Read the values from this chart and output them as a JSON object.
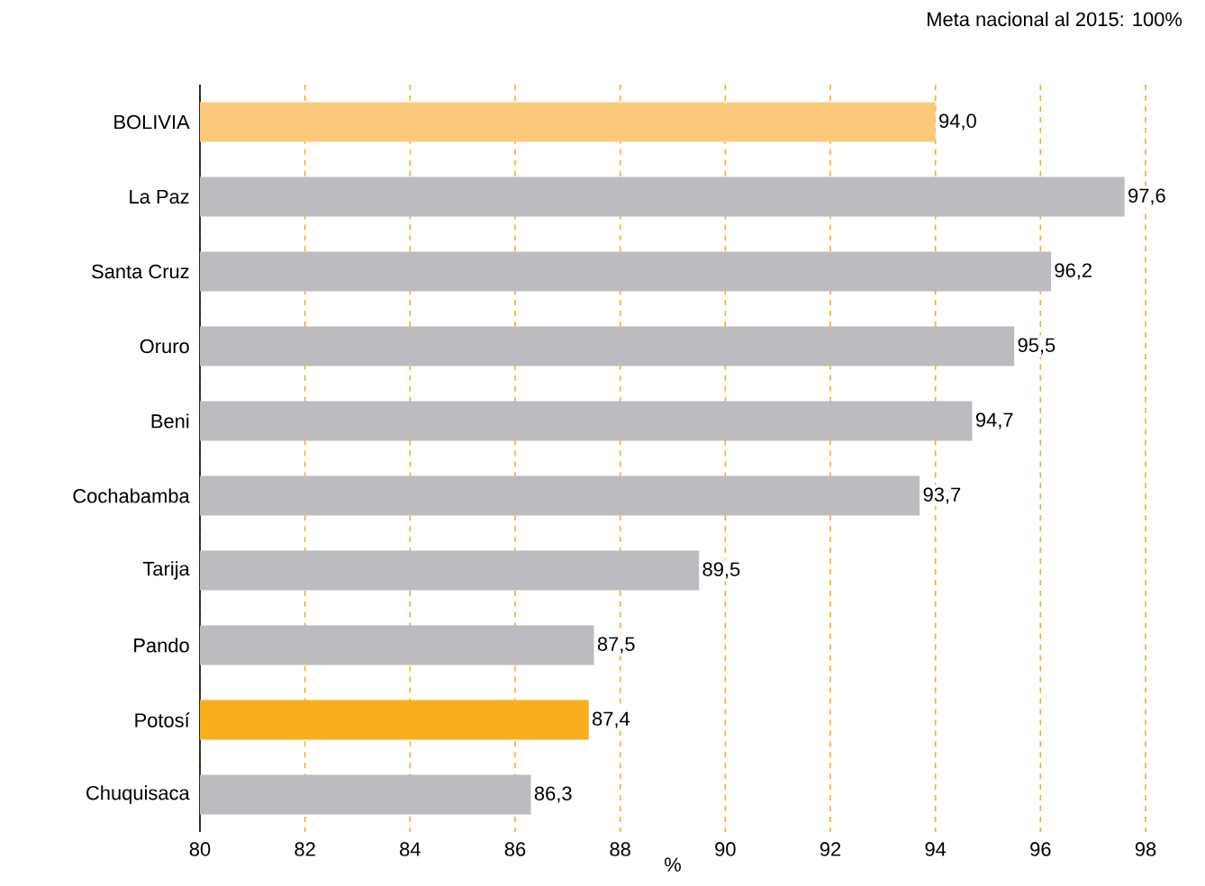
{
  "chart_data": {
    "type": "bar",
    "orientation": "horizontal",
    "xlabel": "%",
    "categories": [
      "BOLIVIA",
      "La Paz",
      "Santa Cruz",
      "Oruro",
      "Beni",
      "Cochabamba",
      "Tarija",
      "Pando",
      "Potosí",
      "Chuquisaca"
    ],
    "values": [
      94.0,
      97.6,
      96.2,
      95.5,
      94.7,
      93.7,
      89.5,
      87.5,
      87.4,
      86.3
    ],
    "value_labels": [
      "94,0",
      "97,6",
      "96,2",
      "95,5",
      "94,7",
      "93,7",
      "89,5",
      "87,5",
      "87,4",
      "86,3"
    ],
    "colors": [
      "#fcc97a",
      "#bcbcc0",
      "#bcbcc0",
      "#bcbcc0",
      "#bcbcc0",
      "#bcbcc0",
      "#bcbcc0",
      "#bcbcc0",
      "#f9ae1b",
      "#bcbcc0"
    ],
    "xlim": [
      80,
      98
    ],
    "xticks": [
      80,
      82,
      84,
      86,
      88,
      90,
      92,
      94,
      96,
      98
    ],
    "grid": "x",
    "annotations": [
      "Meta nacional al 2015: 100%"
    ]
  }
}
